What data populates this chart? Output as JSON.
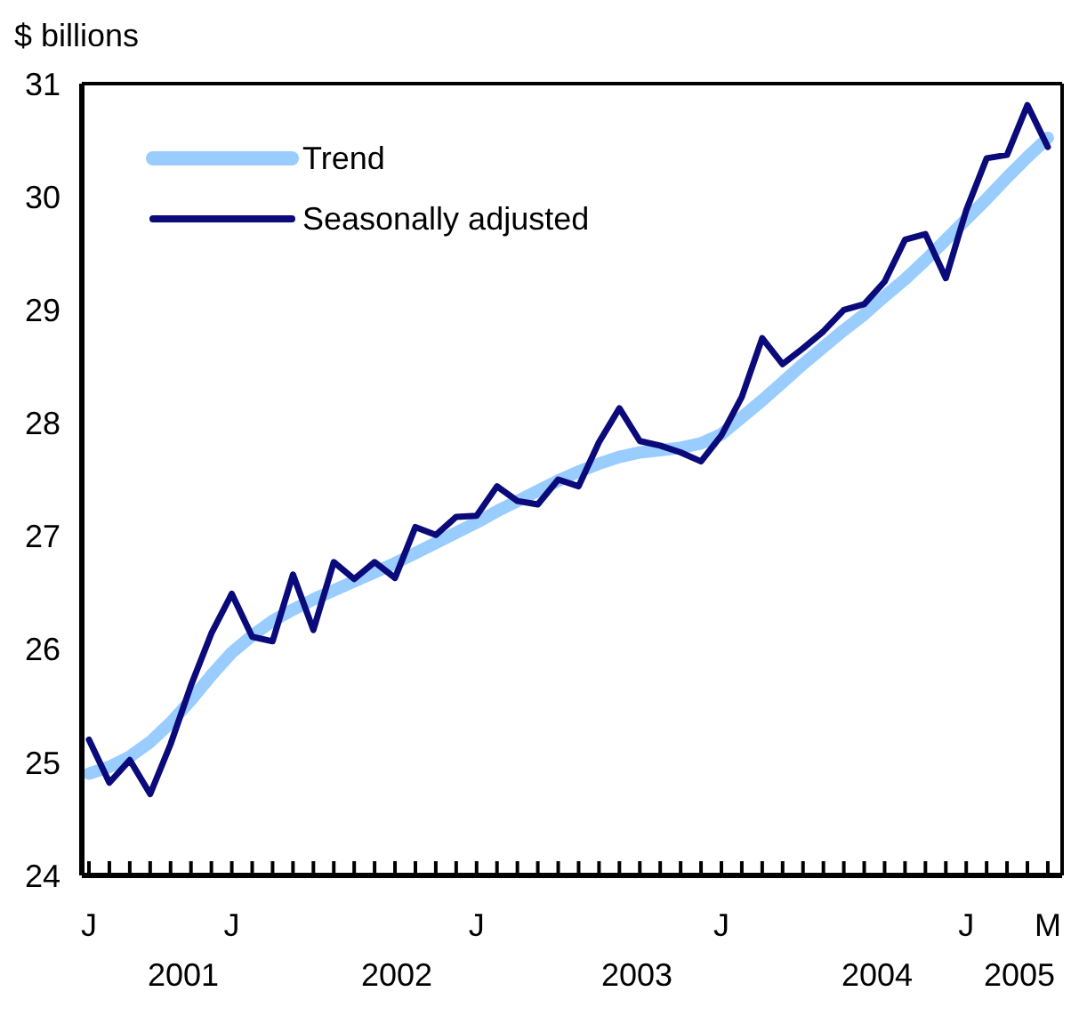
{
  "chart_data": {
    "type": "line",
    "ylabel": "$ billions",
    "categories": [
      "J",
      null,
      null,
      null,
      null,
      null,
      null,
      "J",
      null,
      null,
      null,
      null,
      null,
      null,
      null,
      null,
      null,
      null,
      null,
      "J",
      null,
      null,
      null,
      null,
      null,
      null,
      null,
      null,
      null,
      null,
      null,
      "J",
      null,
      null,
      null,
      null,
      null,
      null,
      null,
      null,
      null,
      null,
      null,
      "J",
      null,
      null,
      null,
      "M"
    ],
    "series": [
      {
        "name": "Trend",
        "color": "#99ccff",
        "values": [
          24.9,
          24.96,
          25.05,
          25.18,
          25.35,
          25.55,
          25.77,
          25.97,
          26.12,
          26.25,
          26.35,
          26.44,
          26.52,
          26.6,
          26.68,
          26.76,
          26.85,
          26.94,
          27.03,
          27.12,
          27.22,
          27.31,
          27.4,
          27.49,
          27.57,
          27.64,
          27.7,
          27.74,
          27.76,
          27.78,
          27.82,
          27.9,
          28.05,
          28.2,
          28.36,
          28.52,
          28.67,
          28.82,
          28.96,
          29.12,
          29.27,
          29.44,
          29.62,
          29.8,
          29.98,
          30.17,
          30.35,
          30.52
        ]
      },
      {
        "name": "Seasonally adjusted",
        "color": "#0a0a7a",
        "values": [
          25.2,
          24.82,
          25.02,
          24.72,
          25.16,
          25.68,
          26.14,
          26.49,
          26.11,
          26.07,
          26.66,
          26.17,
          26.77,
          26.62,
          26.77,
          26.63,
          27.08,
          27.01,
          27.17,
          27.18,
          27.44,
          27.31,
          27.28,
          27.5,
          27.44,
          27.83,
          28.13,
          27.84,
          27.8,
          27.74,
          27.66,
          27.89,
          28.23,
          28.75,
          28.52,
          28.66,
          28.81,
          29.0,
          29.05,
          29.25,
          29.62,
          29.67,
          29.28,
          29.88,
          30.34,
          30.37,
          30.81,
          30.44
        ]
      }
    ],
    "ylim": [
      24,
      31
    ],
    "yticks": [
      24,
      25,
      26,
      27,
      28,
      29,
      30,
      31
    ],
    "annotations": [
      "2001",
      "2002",
      "2003",
      "2004",
      "2005"
    ],
    "legend": "top left",
    "grid": false
  }
}
